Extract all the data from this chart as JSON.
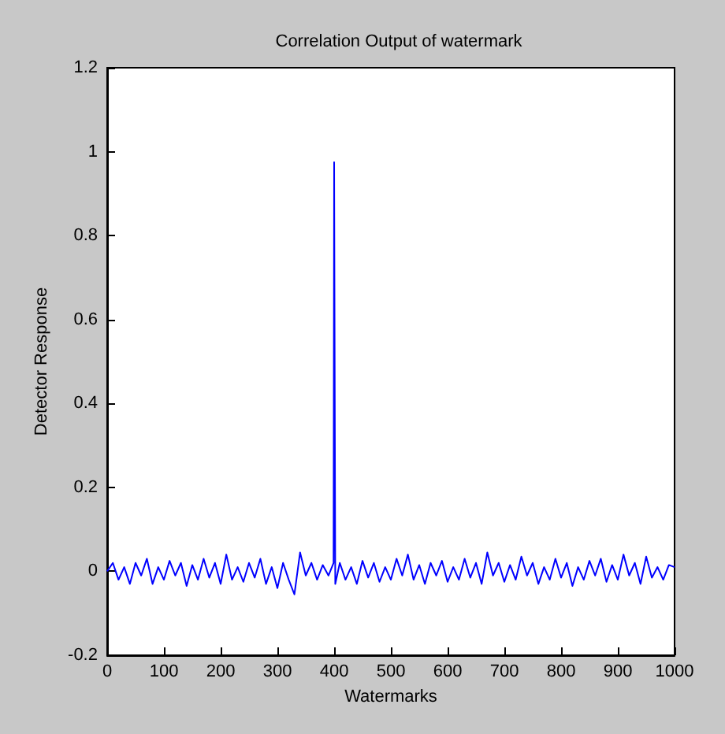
{
  "chart_data": {
    "type": "line",
    "title": "Correlation Output of watermark",
    "xlabel": "Watermarks",
    "ylabel": "Detector Response",
    "x": [
      0,
      10,
      20,
      30,
      40,
      50,
      60,
      70,
      80,
      90,
      100,
      110,
      120,
      130,
      140,
      150,
      160,
      170,
      180,
      190,
      200,
      210,
      220,
      230,
      240,
      250,
      260,
      270,
      280,
      290,
      300,
      310,
      320,
      330,
      340,
      350,
      360,
      370,
      380,
      390,
      399,
      400,
      401,
      402,
      410,
      420,
      430,
      440,
      450,
      460,
      470,
      480,
      490,
      500,
      510,
      520,
      530,
      540,
      550,
      560,
      570,
      580,
      590,
      600,
      610,
      620,
      630,
      640,
      650,
      660,
      670,
      680,
      690,
      700,
      710,
      720,
      730,
      740,
      750,
      760,
      770,
      780,
      790,
      800,
      810,
      820,
      830,
      840,
      850,
      860,
      870,
      880,
      890,
      900,
      910,
      920,
      930,
      940,
      950,
      960,
      970,
      980,
      990,
      1000
    ],
    "series": [
      {
        "color": "#0000ff",
        "values": [
          0.0,
          0.02,
          -0.02,
          0.01,
          -0.03,
          0.02,
          -0.01,
          0.03,
          -0.03,
          0.01,
          -0.02,
          0.025,
          -0.01,
          0.02,
          -0.035,
          0.015,
          -0.02,
          0.03,
          -0.015,
          0.02,
          -0.03,
          0.04,
          -0.02,
          0.01,
          -0.025,
          0.02,
          -0.015,
          0.03,
          -0.03,
          0.01,
          -0.04,
          0.02,
          -0.02,
          -0.055,
          0.045,
          -0.01,
          0.02,
          -0.02,
          0.015,
          -0.01,
          0.02,
          0.975,
          0.47,
          -0.03,
          0.02,
          -0.02,
          0.01,
          -0.03,
          0.025,
          -0.015,
          0.02,
          -0.025,
          0.01,
          -0.02,
          0.03,
          -0.01,
          0.04,
          -0.02,
          0.015,
          -0.03,
          0.02,
          -0.01,
          0.025,
          -0.025,
          0.01,
          -0.02,
          0.03,
          -0.015,
          0.02,
          -0.03,
          0.045,
          -0.01,
          0.02,
          -0.025,
          0.015,
          -0.02,
          0.035,
          -0.01,
          0.02,
          -0.03,
          0.01,
          -0.02,
          0.03,
          -0.015,
          0.02,
          -0.035,
          0.01,
          -0.02,
          0.025,
          -0.01,
          0.03,
          -0.025,
          0.015,
          -0.02,
          0.04,
          -0.01,
          0.02,
          -0.03,
          0.035,
          -0.015,
          0.01,
          -0.02,
          0.015,
          0.01
        ]
      }
    ],
    "xlim": [
      0,
      1000
    ],
    "xticks": [
      0,
      100,
      200,
      300,
      400,
      500,
      600,
      700,
      800,
      900,
      1000
    ],
    "ylim": [
      -0.2,
      1.2
    ],
    "yticks": [
      -0.2,
      0,
      0.2,
      0.4,
      0.6,
      0.8,
      1,
      1.2
    ],
    "grid": false,
    "marker": "none",
    "line_style": "solid"
  }
}
